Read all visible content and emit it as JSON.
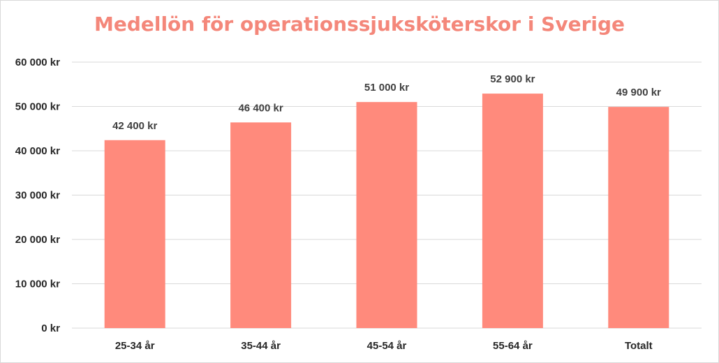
{
  "chart_data": {
    "type": "bar",
    "title": "Medellön för operationssjuksköterskor i Sverige",
    "categories": [
      "25-34 år",
      "35-44 år",
      "45-54 år",
      "55-64 år",
      "Totalt"
    ],
    "values": [
      42400,
      46400,
      51000,
      52900,
      49900
    ],
    "data_labels": [
      "42 400 kr",
      "46 400 kr",
      "51 000 kr",
      "52 900 kr",
      "49 900 kr"
    ],
    "ylim": [
      0,
      60000
    ],
    "yticks": [
      0,
      10000,
      20000,
      30000,
      40000,
      50000,
      60000
    ],
    "ytick_labels": [
      "0 kr",
      "10 000 kr",
      "20 000 kr",
      "30 000 kr",
      "40 000 kr",
      "50 000 kr",
      "60 000 kr"
    ],
    "grid": true,
    "legend": "none",
    "colors": {
      "bar": "#ff8a7c",
      "title": "#f4877a",
      "grid": "#d9d9d9"
    }
  }
}
